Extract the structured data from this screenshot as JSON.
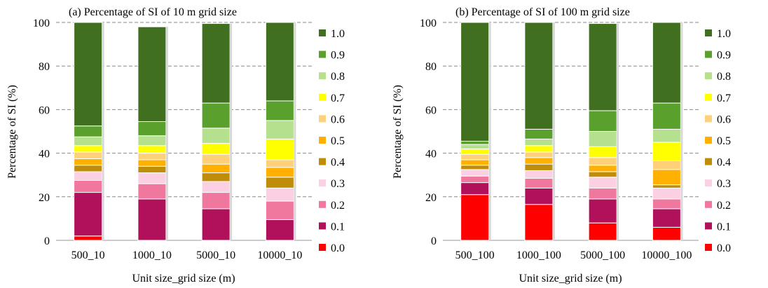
{
  "legend_labels": [
    "1.0",
    "0.9",
    "0.8",
    "0.7",
    "0.6",
    "0.5",
    "0.4",
    "0.3",
    "0.2",
    "0.1",
    "0.0"
  ],
  "colors": {
    "0.0": "#ff0000",
    "0.1": "#b0115a",
    "0.2": "#f0789e",
    "0.3": "#fbd0e2",
    "0.4": "#c08d0b",
    "0.5": "#ffb000",
    "0.6": "#ffd07a",
    "0.7": "#ffff00",
    "0.8": "#b5e08e",
    "0.9": "#5aa02c",
    "1.0": "#3f6f1f",
    "grid": "#888888"
  },
  "chart_data": [
    {
      "type": "bar",
      "stacked": true,
      "title": "(a) Percentage  of SI of 10 m grid  size",
      "xlabel": "Unit size_grid  size  (m)",
      "ylabel": "Percentage  of SI (%)",
      "ylim": [
        0,
        100
      ],
      "yticks": [
        0,
        20,
        40,
        60,
        80,
        100
      ],
      "grid": "horizontal dashed",
      "legend_position": "right",
      "categories": [
        "500_10",
        "1000_10",
        "5000_10",
        "10000_10"
      ],
      "series": [
        {
          "name": "0.0",
          "values": [
            2,
            0,
            0,
            0
          ]
        },
        {
          "name": "0.1",
          "values": [
            20,
            19,
            14.5,
            9.5
          ]
        },
        {
          "name": "0.2",
          "values": [
            5.5,
            7,
            7.5,
            8.5
          ]
        },
        {
          "name": "0.3",
          "values": [
            4,
            5,
            5,
            6
          ]
        },
        {
          "name": "0.4",
          "values": [
            3,
            3,
            4,
            5
          ]
        },
        {
          "name": "0.5",
          "values": [
            3,
            3,
            4,
            4.5
          ]
        },
        {
          "name": "0.6",
          "values": [
            3,
            3,
            4.5,
            3.5
          ]
        },
        {
          "name": "0.7",
          "values": [
            3,
            3.5,
            5,
            9.5
          ]
        },
        {
          "name": "0.8",
          "values": [
            4,
            4.5,
            7,
            8.5
          ]
        },
        {
          "name": "0.9",
          "values": [
            5,
            6.5,
            11.5,
            9
          ]
        },
        {
          "name": "1.0",
          "values": [
            47.5,
            43.5,
            36.5,
            36
          ]
        }
      ]
    },
    {
      "type": "bar",
      "stacked": true,
      "title": "(b) Percentage  of SI of 100 m grid  size",
      "xlabel": "Unit size_grid  size  (m)",
      "ylabel": "Percentage  of SI (%)",
      "ylim": [
        0,
        100
      ],
      "yticks": [
        0,
        20,
        40,
        60,
        80,
        100
      ],
      "grid": "horizontal dashed",
      "legend_position": "right",
      "categories": [
        "500_100",
        "1000_100",
        "5000_100",
        "10000_100"
      ],
      "series": [
        {
          "name": "0.0",
          "values": [
            21,
            16.5,
            8,
            6
          ]
        },
        {
          "name": "0.1",
          "values": [
            5.5,
            7.5,
            11,
            8.5
          ]
        },
        {
          "name": "0.2",
          "values": [
            3,
            4.5,
            5,
            4.5
          ]
        },
        {
          "name": "0.3",
          "values": [
            3,
            3.5,
            5,
            5
          ]
        },
        {
          "name": "0.4",
          "values": [
            2,
            3,
            2.5,
            1.5
          ]
        },
        {
          "name": "0.5",
          "values": [
            2.5,
            3,
            3,
            7
          ]
        },
        {
          "name": "0.6",
          "values": [
            2.5,
            2.5,
            3.5,
            4
          ]
        },
        {
          "name": "0.7",
          "values": [
            2.5,
            3,
            5,
            8.5
          ]
        },
        {
          "name": "0.8",
          "values": [
            2,
            3,
            7,
            6
          ]
        },
        {
          "name": "0.9",
          "values": [
            1.5,
            4.5,
            9.5,
            12
          ]
        },
        {
          "name": "1.0",
          "values": [
            54.5,
            49,
            40,
            37
          ]
        }
      ]
    }
  ]
}
